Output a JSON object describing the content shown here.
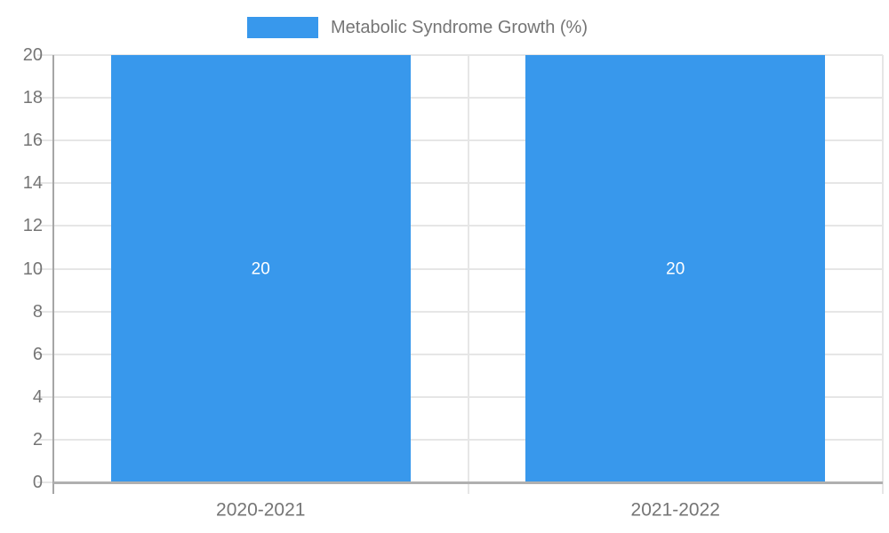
{
  "chart_data": {
    "type": "bar",
    "title": "",
    "categories": [
      "2020-2021",
      "2021-2022"
    ],
    "series": [
      {
        "name": "Metabolic Syndrome Growth (%)",
        "values": [
          20,
          20
        ],
        "value_labels": [
          "20",
          "20"
        ],
        "color": "#3898EC"
      }
    ],
    "ylim": [
      0,
      20
    ],
    "y_ticks": [
      0,
      2,
      4,
      6,
      8,
      10,
      12,
      14,
      16,
      18,
      20
    ],
    "grid": true,
    "legend_position": "top-center",
    "xlabel": "",
    "ylabel": "",
    "colors": {
      "bar": "#3898EC",
      "value_label": "#FFFFFF",
      "axis_text": "#757575",
      "gridline": "#E6E6E6",
      "axis_line": "#A6A6A6",
      "baseline": "#B0B0B0",
      "background": "#FFFFFF"
    }
  },
  "legend": {
    "label": "Metabolic Syndrome Growth (%)",
    "swatch_color": "#3898EC"
  }
}
